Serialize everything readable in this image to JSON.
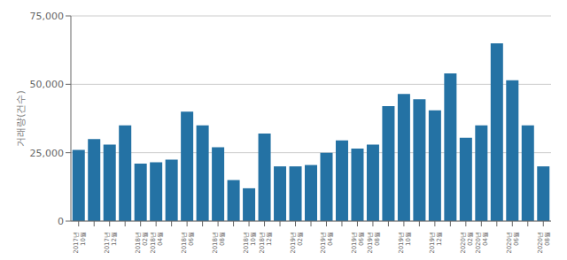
{
  "chart_data": {
    "type": "bar",
    "ylabel": "거래량(건수)",
    "categories": [
      "2017년\n10월",
      null,
      "2017년\n12월",
      null,
      "2018년\n02월",
      "2018년\n04월",
      null,
      "2018년\n06월",
      null,
      "2018년\n08월",
      null,
      "2018년\n10월",
      "2018년\n12월",
      null,
      "2019년\n02월",
      null,
      "2019년\n04월",
      null,
      "2019년\n06월",
      "2019년\n08월",
      null,
      "2019년\n10월",
      null,
      "2019년\n12월",
      null,
      "2020년\n02월",
      "2020년\n04월",
      null,
      "2020년\n06월",
      null,
      "2020년\n08월"
    ],
    "values": [
      26000,
      30000,
      28000,
      35000,
      21000,
      21500,
      22500,
      40000,
      35000,
      27000,
      15000,
      12000,
      32000,
      20000,
      20000,
      20500,
      25000,
      29500,
      26500,
      28000,
      42000,
      46500,
      44500,
      40500,
      54000,
      30500,
      35000,
      65000,
      51500,
      35000,
      20000
    ],
    "color": "#2472a4",
    "ylim": [
      0,
      75000
    ],
    "yticks": [
      0,
      {
        "value": 25000,
        "label": "25,000"
      },
      {
        "value": 50000,
        "label": "50,000"
      },
      {
        "value": 75000,
        "label": "75,000"
      }
    ],
    "grid": true
  }
}
